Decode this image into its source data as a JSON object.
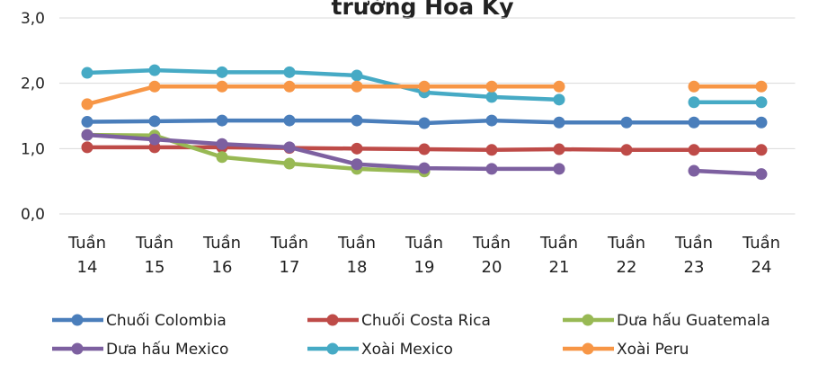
{
  "chart_data": {
    "type": "line",
    "title": "trường Hoa Kỳ",
    "categories": [
      "Tuần 14",
      "Tuần 15",
      "Tuần 16",
      "Tuần 17",
      "Tuần 18",
      "Tuần 19",
      "Tuần 20",
      "Tuần 21",
      "Tuần 22",
      "Tuần 23",
      "Tuần 24"
    ],
    "series": [
      {
        "name": "Chuối Colombia",
        "color": "#4a7ebb",
        "values": [
          1.41,
          1.42,
          1.43,
          1.43,
          1.43,
          1.39,
          1.43,
          1.4,
          1.4,
          1.4,
          1.4
        ]
      },
      {
        "name": "Chuối Costa Rica",
        "color": "#be4b48",
        "values": [
          1.02,
          1.02,
          1.02,
          1.01,
          1.0,
          0.99,
          0.98,
          0.99,
          0.98,
          0.98,
          0.98
        ]
      },
      {
        "name": "Dưa hấu Guatemala",
        "color": "#98b954",
        "values": [
          1.21,
          1.2,
          0.87,
          0.77,
          0.69,
          0.65,
          null,
          null,
          null,
          null,
          null
        ]
      },
      {
        "name": "Dưa hấu Mexico",
        "color": "#7d60a0",
        "values": [
          1.21,
          1.14,
          1.07,
          1.02,
          0.76,
          0.7,
          0.69,
          0.69,
          null,
          0.66,
          0.61
        ]
      },
      {
        "name": "Xoài Mexico",
        "color": "#46aac5",
        "values": [
          2.16,
          2.2,
          2.17,
          2.17,
          2.12,
          1.86,
          1.79,
          1.75,
          null,
          1.71,
          1.71
        ]
      },
      {
        "name": "Xoài Peru",
        "color": "#f79646",
        "values": [
          1.68,
          1.95,
          1.95,
          1.95,
          1.95,
          1.95,
          1.95,
          1.95,
          null,
          1.95,
          1.95
        ]
      }
    ],
    "ylim": [
      0,
      3
    ],
    "yticks": [
      {
        "value": 0,
        "label": "0,0"
      },
      {
        "value": 1,
        "label": "1,0"
      },
      {
        "value": 2,
        "label": "2,0"
      },
      {
        "value": 3,
        "label": "3,0"
      }
    ],
    "grid": true,
    "legend": "bottom"
  }
}
